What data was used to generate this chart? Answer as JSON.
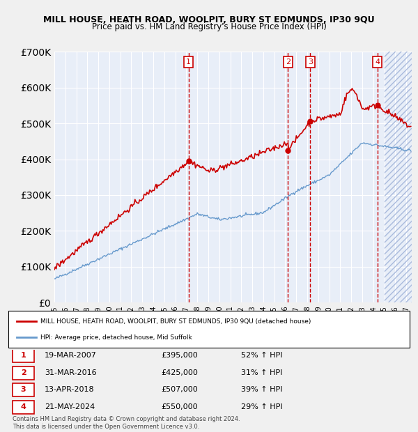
{
  "title": "MILL HOUSE, HEATH ROAD, WOOLPIT, BURY ST EDMUNDS, IP30 9QU",
  "subtitle": "Price paid vs. HM Land Registry's House Price Index (HPI)",
  "ylabel": "",
  "ylim": [
    0,
    700000
  ],
  "yticks": [
    0,
    100000,
    200000,
    300000,
    400000,
    500000,
    600000,
    700000
  ],
  "ytick_labels": [
    "£0",
    "£100K",
    "£200K",
    "£300K",
    "£400K",
    "£500K",
    "£600K",
    "£700K"
  ],
  "xlim_start": 1995.0,
  "xlim_end": 2027.5,
  "bg_color": "#e8eef8",
  "plot_bg": "#e8eef8",
  "red_color": "#cc0000",
  "blue_color": "#6699cc",
  "grid_color": "#ffffff",
  "transactions": [
    {
      "num": 1,
      "date": "19-MAR-2007",
      "price": 395000,
      "year": 2007.21,
      "pct": "52%",
      "dir": "↑"
    },
    {
      "num": 2,
      "date": "31-MAR-2016",
      "price": 425000,
      "year": 2016.25,
      "pct": "31%",
      "dir": "↑"
    },
    {
      "num": 3,
      "date": "13-APR-2018",
      "price": 507000,
      "year": 2018.28,
      "pct": "39%",
      "dir": "↑"
    },
    {
      "num": 4,
      "date": "21-MAY-2024",
      "price": 550000,
      "year": 2024.38,
      "pct": "29%",
      "dir": "↑"
    }
  ],
  "legend_line1": "MILL HOUSE, HEATH ROAD, WOOLPIT, BURY ST EDMUNDS, IP30 9QU (detached house)",
  "legend_line2": "HPI: Average price, detached house, Mid Suffolk",
  "footnote": "Contains HM Land Registry data © Crown copyright and database right 2024.\nThis data is licensed under the Open Government Licence v3.0.",
  "hpi_hatch_color": "#aabbdd"
}
